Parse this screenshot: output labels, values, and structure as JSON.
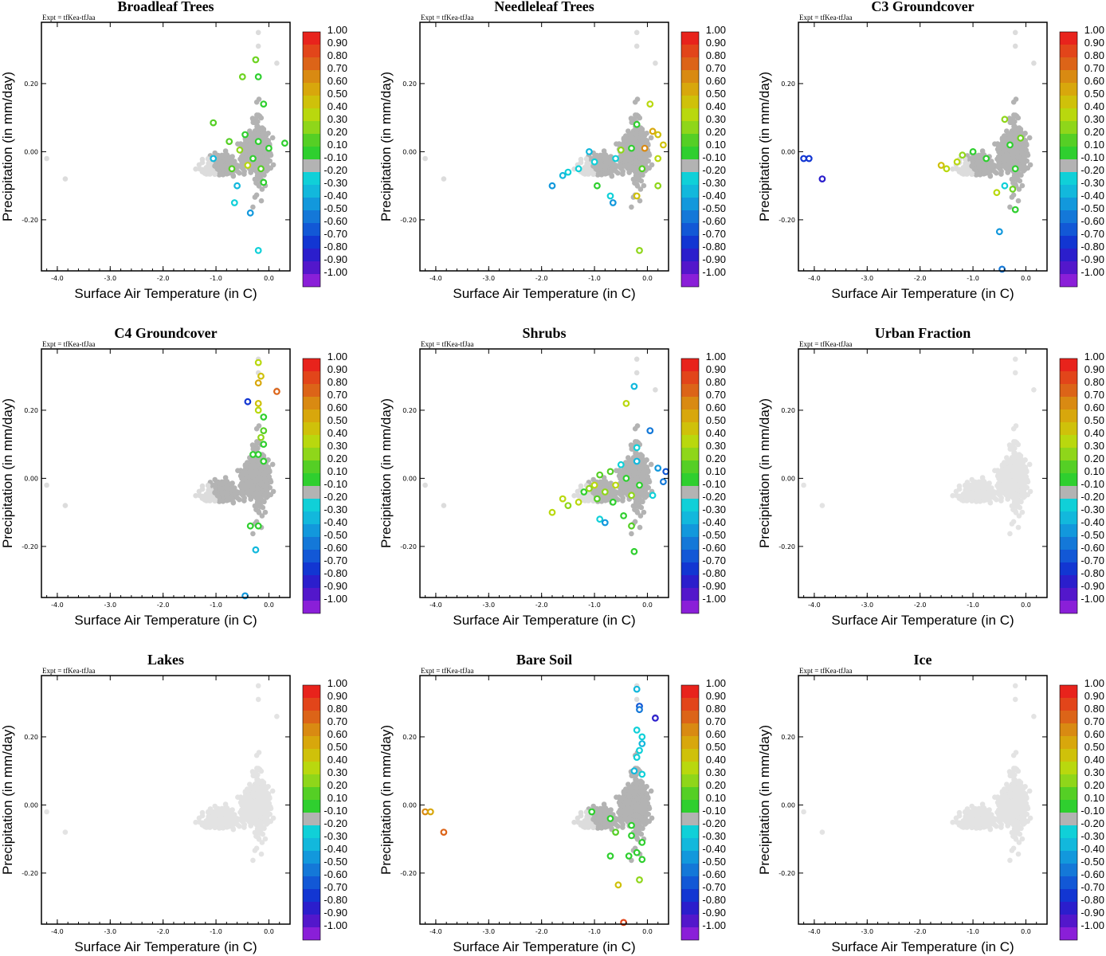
{
  "experiment": "Expt = tfKea-tfJaa",
  "xlabel": "Surface Air Temperature (in C)",
  "ylabel": "Precipitation (in mm/day)",
  "x_ticks": [
    "-4.0",
    "-3.0",
    "-2.0",
    "-1.0",
    "0.0"
  ],
  "y_ticks": [
    "0.20",
    "0.00",
    "-0.20"
  ],
  "colorbar": {
    "labels": [
      "1.00",
      "0.90",
      "0.80",
      "0.70",
      "0.60",
      "0.50",
      "0.40",
      "0.30",
      "0.20",
      "0.10",
      "-0.10",
      "-0.20",
      "-0.30",
      "-0.40",
      "-0.50",
      "-0.60",
      "-0.70",
      "-0.80",
      "-0.90",
      "-1.00"
    ],
    "colors": [
      "#e8231c",
      "#e2451a",
      "#dc6418",
      "#d98a12",
      "#d8a70c",
      "#cfc10a",
      "#b9d80e",
      "#8fd61a",
      "#55cf25",
      "#2fcf2f",
      "#b3b3b3",
      "#10d0d8",
      "#12b8dc",
      "#1298dc",
      "#1478d8",
      "#1258d6",
      "#1236d2",
      "#2b1ecc",
      "#5317cb",
      "#8a1fd8"
    ]
  },
  "chart_data": [
    {
      "type": "scatter",
      "title": "Broadleaf Trees",
      "xlabel": "Surface Air Temperature (in C)",
      "ylabel": "Precipitation (in mm/day)",
      "xlim": [
        -4.3,
        0.4
      ],
      "ylim": [
        -0.35,
        0.38
      ],
      "colored_points": [
        {
          "x": -0.25,
          "y": 0.27,
          "c": "#6dd320"
        },
        {
          "x": -0.5,
          "y": 0.22,
          "c": "#6dd320"
        },
        {
          "x": -0.2,
          "y": 0.22,
          "c": "#2fcf2f"
        },
        {
          "x": -0.1,
          "y": 0.14,
          "c": "#2fcf2f"
        },
        {
          "x": -1.05,
          "y": 0.085,
          "c": "#55cf25"
        },
        {
          "x": -0.45,
          "y": 0.05,
          "c": "#2fcf2f"
        },
        {
          "x": -0.75,
          "y": 0.03,
          "c": "#55cf25"
        },
        {
          "x": -0.2,
          "y": 0.03,
          "c": "#2fcf2f"
        },
        {
          "x": 0.3,
          "y": 0.025,
          "c": "#2fcf2f"
        },
        {
          "x": -0.55,
          "y": 0.005,
          "c": "#8fd61a"
        },
        {
          "x": -0.3,
          "y": -0.02,
          "c": "#2fcf2f"
        },
        {
          "x": -1.05,
          "y": -0.02,
          "c": "#12b8dc"
        },
        {
          "x": -0.4,
          "y": -0.04,
          "c": "#b9d80e"
        },
        {
          "x": -0.7,
          "y": -0.05,
          "c": "#55cf25"
        },
        {
          "x": -0.15,
          "y": -0.05,
          "c": "#55cf25"
        },
        {
          "x": -0.6,
          "y": -0.1,
          "c": "#12b8dc"
        },
        {
          "x": -0.1,
          "y": -0.09,
          "c": "#2fcf2f"
        },
        {
          "x": -0.65,
          "y": -0.15,
          "c": "#10d0d8"
        },
        {
          "x": -0.35,
          "y": -0.18,
          "c": "#1298dc"
        },
        {
          "x": -0.2,
          "y": -0.29,
          "c": "#10d0d8"
        },
        {
          "x": 0.0,
          "y": 0.01,
          "c": "#2fcf2f"
        }
      ]
    },
    {
      "type": "scatter",
      "title": "Needleleaf Trees",
      "xlabel": "Surface Air Temperature (in C)",
      "ylabel": "Precipitation (in mm/day)",
      "xlim": [
        -4.3,
        0.4
      ],
      "ylim": [
        -0.35,
        0.38
      ],
      "colored_points": [
        {
          "x": 0.05,
          "y": 0.14,
          "c": "#b9d80e"
        },
        {
          "x": -0.2,
          "y": 0.08,
          "c": "#2fcf2f"
        },
        {
          "x": 0.1,
          "y": 0.06,
          "c": "#d8a70c"
        },
        {
          "x": -0.05,
          "y": 0.01,
          "c": "#d98a12"
        },
        {
          "x": 0.2,
          "y": 0.05,
          "c": "#cfc10a"
        },
        {
          "x": -0.3,
          "y": 0.01,
          "c": "#2fcf2f"
        },
        {
          "x": -1.1,
          "y": 0.0,
          "c": "#12b8dc"
        },
        {
          "x": -1.5,
          "y": -0.06,
          "c": "#10d0d8"
        },
        {
          "x": -1.6,
          "y": -0.07,
          "c": "#12b8dc"
        },
        {
          "x": -1.8,
          "y": -0.1,
          "c": "#1298dc"
        },
        {
          "x": -1.3,
          "y": -0.05,
          "c": "#10d0d8"
        },
        {
          "x": -1.0,
          "y": -0.03,
          "c": "#10d0d8"
        },
        {
          "x": -0.6,
          "y": -0.02,
          "c": "#10d0d8"
        },
        {
          "x": -0.5,
          "y": 0.005,
          "c": "#8fd61a"
        },
        {
          "x": 0.2,
          "y": -0.02,
          "c": "#b9d80e"
        },
        {
          "x": -0.95,
          "y": -0.1,
          "c": "#2fcf2f"
        },
        {
          "x": -0.7,
          "y": -0.13,
          "c": "#10d0d8"
        },
        {
          "x": -0.2,
          "y": -0.13,
          "c": "#cfc10a"
        },
        {
          "x": 0.2,
          "y": -0.1,
          "c": "#8fd61a"
        },
        {
          "x": -0.1,
          "y": -0.05,
          "c": "#55cf25"
        },
        {
          "x": -0.65,
          "y": -0.15,
          "c": "#1298dc"
        },
        {
          "x": -0.15,
          "y": -0.29,
          "c": "#8fd61a"
        },
        {
          "x": 0.3,
          "y": 0.02,
          "c": "#cfc10a"
        }
      ]
    },
    {
      "type": "scatter",
      "title": "C3 Groundcover",
      "xlabel": "Surface Air Temperature (in C)",
      "ylabel": "Precipitation (in mm/day)",
      "xlim": [
        -4.3,
        0.4
      ],
      "ylim": [
        -0.35,
        0.38
      ],
      "colored_points": [
        {
          "x": -4.2,
          "y": -0.02,
          "c": "#1236d2"
        },
        {
          "x": -4.1,
          "y": -0.02,
          "c": "#1236d2"
        },
        {
          "x": -3.85,
          "y": -0.08,
          "c": "#2b1ecc"
        },
        {
          "x": -0.4,
          "y": 0.095,
          "c": "#8fd61a"
        },
        {
          "x": -0.1,
          "y": 0.04,
          "c": "#6dd320"
        },
        {
          "x": -1.2,
          "y": -0.01,
          "c": "#8fd61a"
        },
        {
          "x": -1.5,
          "y": -0.05,
          "c": "#b9d80e"
        },
        {
          "x": -1.3,
          "y": -0.03,
          "c": "#b9d80e"
        },
        {
          "x": -1.0,
          "y": 0.0,
          "c": "#2fcf2f"
        },
        {
          "x": -0.75,
          "y": -0.02,
          "c": "#2fcf2f"
        },
        {
          "x": -0.3,
          "y": 0.02,
          "c": "#2fcf2f"
        },
        {
          "x": -0.4,
          "y": -0.1,
          "c": "#10d0d8"
        },
        {
          "x": -0.25,
          "y": -0.11,
          "c": "#6dd320"
        },
        {
          "x": -0.55,
          "y": -0.12,
          "c": "#b9d80e"
        },
        {
          "x": -0.2,
          "y": -0.17,
          "c": "#2fcf2f"
        },
        {
          "x": -0.5,
          "y": -0.235,
          "c": "#1298dc"
        },
        {
          "x": -0.45,
          "y": -0.345,
          "c": "#1478d8"
        },
        {
          "x": -0.2,
          "y": -0.05,
          "c": "#2fcf2f"
        },
        {
          "x": -1.6,
          "y": -0.04,
          "c": "#cfc10a"
        }
      ]
    },
    {
      "type": "scatter",
      "title": "C4 Groundcover",
      "xlabel": "Surface Air Temperature (in C)",
      "ylabel": "Precipitation (in mm/day)",
      "xlim": [
        -4.3,
        0.4
      ],
      "ylim": [
        -0.35,
        0.38
      ],
      "colored_points": [
        {
          "x": -0.2,
          "y": 0.34,
          "c": "#b9d80e"
        },
        {
          "x": -0.15,
          "y": 0.3,
          "c": "#cfc10a"
        },
        {
          "x": -0.2,
          "y": 0.28,
          "c": "#d8a70c"
        },
        {
          "x": 0.15,
          "y": 0.255,
          "c": "#dc6418"
        },
        {
          "x": -0.4,
          "y": 0.225,
          "c": "#1236d2"
        },
        {
          "x": -0.2,
          "y": 0.22,
          "c": "#cfc10a"
        },
        {
          "x": -0.2,
          "y": 0.2,
          "c": "#b9d80e"
        },
        {
          "x": -0.1,
          "y": 0.18,
          "c": "#2fcf2f"
        },
        {
          "x": -0.1,
          "y": 0.14,
          "c": "#55cf25"
        },
        {
          "x": -0.15,
          "y": 0.12,
          "c": "#8fd61a"
        },
        {
          "x": -0.1,
          "y": 0.1,
          "c": "#2fcf2f"
        },
        {
          "x": -0.2,
          "y": 0.07,
          "c": "#2fcf2f"
        },
        {
          "x": -0.3,
          "y": 0.07,
          "c": "#2fcf2f"
        },
        {
          "x": -0.35,
          "y": -0.14,
          "c": "#2fcf2f"
        },
        {
          "x": -0.2,
          "y": -0.14,
          "c": "#2fcf2f"
        },
        {
          "x": -0.25,
          "y": -0.21,
          "c": "#12b8dc"
        },
        {
          "x": -0.45,
          "y": -0.345,
          "c": "#1298dc"
        },
        {
          "x": -0.1,
          "y": 0.05,
          "c": "#2fcf2f"
        }
      ]
    },
    {
      "type": "scatter",
      "title": "Shrubs",
      "xlabel": "Surface Air Temperature (in C)",
      "ylabel": "Precipitation (in mm/day)",
      "xlim": [
        -4.3,
        0.4
      ],
      "ylim": [
        -0.35,
        0.38
      ],
      "colored_points": [
        {
          "x": -0.25,
          "y": 0.27,
          "c": "#12b8dc"
        },
        {
          "x": -0.4,
          "y": 0.22,
          "c": "#b9d80e"
        },
        {
          "x": 0.05,
          "y": 0.14,
          "c": "#1478d8"
        },
        {
          "x": -0.2,
          "y": 0.09,
          "c": "#10d0d8"
        },
        {
          "x": 0.2,
          "y": 0.03,
          "c": "#1298dc"
        },
        {
          "x": 0.35,
          "y": 0.02,
          "c": "#1258d6"
        },
        {
          "x": 0.3,
          "y": -0.01,
          "c": "#1478d8"
        },
        {
          "x": -1.6,
          "y": -0.06,
          "c": "#b9d80e"
        },
        {
          "x": -1.8,
          "y": -0.1,
          "c": "#b9d80e"
        },
        {
          "x": -1.5,
          "y": -0.08,
          "c": "#8fd61a"
        },
        {
          "x": -1.3,
          "y": -0.07,
          "c": "#b9d80e"
        },
        {
          "x": -1.2,
          "y": -0.04,
          "c": "#2fcf2f"
        },
        {
          "x": -1.0,
          "y": -0.02,
          "c": "#b9d80e"
        },
        {
          "x": -0.9,
          "y": 0.01,
          "c": "#55cf25"
        },
        {
          "x": -0.8,
          "y": -0.04,
          "c": "#8fd61a"
        },
        {
          "x": -0.7,
          "y": 0.02,
          "c": "#55cf25"
        },
        {
          "x": -0.6,
          "y": -0.02,
          "c": "#b9d80e"
        },
        {
          "x": -0.5,
          "y": 0.04,
          "c": "#10d0d8"
        },
        {
          "x": -0.4,
          "y": 0.0,
          "c": "#2fcf2f"
        },
        {
          "x": -0.3,
          "y": -0.05,
          "c": "#8fd61a"
        },
        {
          "x": -0.2,
          "y": 0.05,
          "c": "#12b8dc"
        },
        {
          "x": 0.1,
          "y": -0.05,
          "c": "#10d0d8"
        },
        {
          "x": -0.9,
          "y": -0.12,
          "c": "#10d0d8"
        },
        {
          "x": -0.8,
          "y": -0.13,
          "c": "#1298dc"
        },
        {
          "x": -0.45,
          "y": -0.11,
          "c": "#2fcf2f"
        },
        {
          "x": -0.3,
          "y": -0.14,
          "c": "#55cf25"
        },
        {
          "x": -0.25,
          "y": -0.215,
          "c": "#2fcf2f"
        },
        {
          "x": -1.1,
          "y": -0.03,
          "c": "#8fd61a"
        },
        {
          "x": -0.95,
          "y": -0.06,
          "c": "#55cf25"
        },
        {
          "x": -0.65,
          "y": -0.07,
          "c": "#2fcf2f"
        },
        {
          "x": -0.15,
          "y": -0.02,
          "c": "#2fcf2f"
        }
      ]
    },
    {
      "type": "scatter",
      "title": "Urban Fraction",
      "xlabel": "Surface Air Temperature (in C)",
      "ylabel": "Precipitation (in mm/day)",
      "xlim": [
        -4.3,
        0.4
      ],
      "ylim": [
        -0.35,
        0.38
      ],
      "colored_points": []
    },
    {
      "type": "scatter",
      "title": "Lakes",
      "xlabel": "Surface Air Temperature (in C)",
      "ylabel": "Precipitation (in mm/day)",
      "xlim": [
        -4.3,
        0.4
      ],
      "ylim": [
        -0.35,
        0.38
      ],
      "colored_points": []
    },
    {
      "type": "scatter",
      "title": "Bare Soil",
      "xlabel": "Surface Air Temperature (in C)",
      "ylabel": "Precipitation (in mm/day)",
      "xlim": [
        -4.3,
        0.4
      ],
      "ylim": [
        -0.35,
        0.38
      ],
      "colored_points": [
        {
          "x": -4.2,
          "y": -0.02,
          "c": "#d98a12"
        },
        {
          "x": -4.1,
          "y": -0.02,
          "c": "#d8a70c"
        },
        {
          "x": -3.85,
          "y": -0.08,
          "c": "#dc6418"
        },
        {
          "x": -0.2,
          "y": 0.34,
          "c": "#12b8dc"
        },
        {
          "x": -0.15,
          "y": 0.29,
          "c": "#1258d6"
        },
        {
          "x": -0.15,
          "y": 0.28,
          "c": "#1478d8"
        },
        {
          "x": 0.15,
          "y": 0.255,
          "c": "#2b1ecc"
        },
        {
          "x": -0.2,
          "y": 0.22,
          "c": "#10d0d8"
        },
        {
          "x": -0.1,
          "y": 0.2,
          "c": "#10d0d8"
        },
        {
          "x": -0.1,
          "y": 0.18,
          "c": "#12b8dc"
        },
        {
          "x": -0.15,
          "y": 0.16,
          "c": "#10d0d8"
        },
        {
          "x": -0.2,
          "y": 0.14,
          "c": "#10d0d8"
        },
        {
          "x": -0.25,
          "y": 0.1,
          "c": "#12b8dc"
        },
        {
          "x": -0.1,
          "y": 0.09,
          "c": "#10d0d8"
        },
        {
          "x": -1.05,
          "y": -0.02,
          "c": "#2fcf2f"
        },
        {
          "x": -0.7,
          "y": -0.04,
          "c": "#2fcf2f"
        },
        {
          "x": -0.3,
          "y": -0.06,
          "c": "#2fcf2f"
        },
        {
          "x": -0.6,
          "y": -0.08,
          "c": "#55cf25"
        },
        {
          "x": -0.3,
          "y": -0.09,
          "c": "#2fcf2f"
        },
        {
          "x": -0.1,
          "y": -0.11,
          "c": "#2fcf2f"
        },
        {
          "x": -0.2,
          "y": -0.14,
          "c": "#2fcf2f"
        },
        {
          "x": -0.35,
          "y": -0.15,
          "c": "#2fcf2f"
        },
        {
          "x": -0.7,
          "y": -0.15,
          "c": "#2fcf2f"
        },
        {
          "x": -0.15,
          "y": -0.22,
          "c": "#8fd61a"
        },
        {
          "x": -0.55,
          "y": -0.235,
          "c": "#cfc10a"
        },
        {
          "x": -0.45,
          "y": -0.345,
          "c": "#e2451a"
        },
        {
          "x": -0.1,
          "y": -0.16,
          "c": "#2fcf2f"
        }
      ]
    },
    {
      "type": "scatter",
      "title": "Ice",
      "xlabel": "Surface Air Temperature (in C)",
      "ylabel": "Precipitation (in mm/day)",
      "xlim": [
        -4.3,
        0.4
      ],
      "ylim": [
        -0.35,
        0.38
      ],
      "colored_points": []
    }
  ]
}
